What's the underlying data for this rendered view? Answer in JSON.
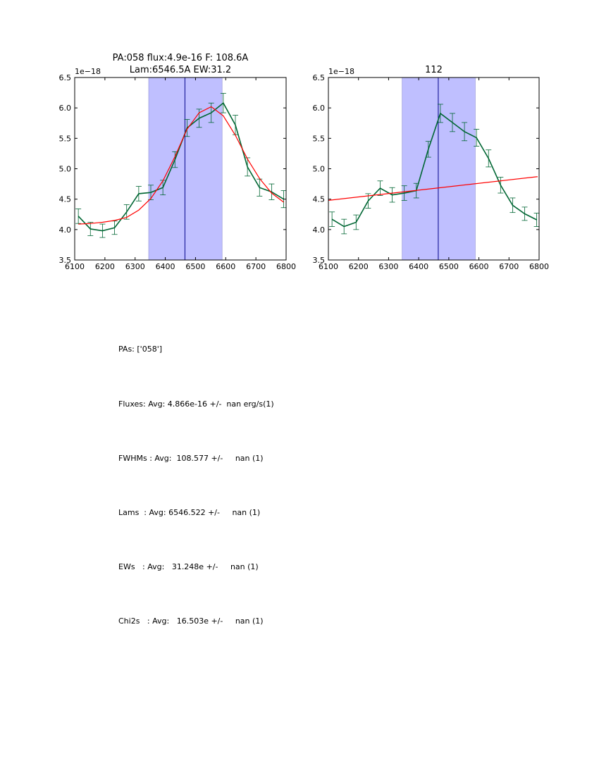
{
  "chart_data": [
    {
      "type": "line",
      "title_line1": "PA:058 flux:4.9e-16 F: 108.6A",
      "title_line2": "Lam:6546.5A EW:31.2",
      "offset_label": "1e−18",
      "xlim": [
        6100,
        6800
      ],
      "ylim": [
        3.5,
        6.5
      ],
      "xticks": [
        "6100",
        "6200",
        "6300",
        "6400",
        "6500",
        "6600",
        "6700",
        "6800"
      ],
      "yticks": [
        "3.5",
        "4.0",
        "4.5",
        "5.0",
        "5.5",
        "6.0",
        "6.5"
      ],
      "band": [
        6345,
        6588
      ],
      "vline": 6465,
      "series": [
        {
          "name": "data",
          "color": "#006633",
          "x": [
            6112,
            6152,
            6192,
            6232,
            6272,
            6312,
            6352,
            6392,
            6432,
            6472,
            6512,
            6552,
            6592,
            6632,
            6672,
            6712,
            6752,
            6792
          ],
          "y": [
            4.22,
            4.01,
            3.98,
            4.03,
            4.29,
            4.59,
            4.61,
            4.69,
            5.15,
            5.67,
            5.83,
            5.92,
            6.08,
            5.72,
            5.03,
            4.69,
            4.62,
            4.5
          ],
          "err": [
            0.12,
            0.11,
            0.11,
            0.11,
            0.12,
            0.12,
            0.12,
            0.12,
            0.13,
            0.14,
            0.15,
            0.16,
            0.16,
            0.16,
            0.15,
            0.14,
            0.13,
            0.14
          ]
        },
        {
          "name": "fit",
          "color": "#ff0000",
          "x": [
            6112,
            6152,
            6192,
            6232,
            6272,
            6312,
            6352,
            6392,
            6432,
            6472,
            6512,
            6552,
            6592,
            6632,
            6672,
            6712,
            6752,
            6792
          ],
          "y": [
            4.09,
            4.1,
            4.12,
            4.15,
            4.2,
            4.32,
            4.51,
            4.8,
            5.2,
            5.65,
            5.92,
            6.02,
            5.87,
            5.55,
            5.16,
            4.84,
            4.6,
            4.45
          ]
        }
      ]
    },
    {
      "type": "line",
      "title_line1": "112",
      "offset_label": "1e−18",
      "xlim": [
        6100,
        6800
      ],
      "ylim": [
        3.5,
        6.5
      ],
      "xticks": [
        "6100",
        "6200",
        "6300",
        "6400",
        "6500",
        "6600",
        "6700",
        "6800"
      ],
      "yticks": [
        "3.5",
        "4.0",
        "4.5",
        "5.0",
        "5.5",
        "6.0",
        "6.5"
      ],
      "band": [
        6345,
        6588
      ],
      "vline": 6465,
      "series": [
        {
          "name": "data",
          "color": "#006633",
          "x": [
            6112,
            6152,
            6192,
            6232,
            6272,
            6312,
            6352,
            6392,
            6432,
            6472,
            6512,
            6552,
            6592,
            6632,
            6672,
            6712,
            6752,
            6792
          ],
          "y": [
            4.17,
            4.05,
            4.12,
            4.47,
            4.68,
            4.57,
            4.6,
            4.64,
            5.32,
            5.91,
            5.76,
            5.61,
            5.51,
            5.17,
            4.73,
            4.4,
            4.26,
            4.16
          ],
          "err": [
            0.12,
            0.12,
            0.12,
            0.12,
            0.12,
            0.12,
            0.12,
            0.12,
            0.13,
            0.15,
            0.15,
            0.15,
            0.14,
            0.14,
            0.13,
            0.12,
            0.11,
            0.11
          ]
        },
        {
          "name": "fit",
          "color": "#ff0000",
          "x": [
            6100,
            6795
          ],
          "y": [
            4.48,
            4.87
          ]
        }
      ]
    }
  ],
  "stats": {
    "pas": "PAs: ['058']",
    "fluxes": "Fluxes: Avg: 4.866e-16 +/-  nan erg/s(1)",
    "fwhms": "FWHMs : Avg:  108.577 +/-     nan (1)",
    "lams": "Lams  : Avg: 6546.522 +/-     nan (1)",
    "ews": "EWs   : Avg:   31.248e +/-     nan (1)",
    "chi2s": "Chi2s   : Avg:   16.503e +/-     nan (1)"
  }
}
